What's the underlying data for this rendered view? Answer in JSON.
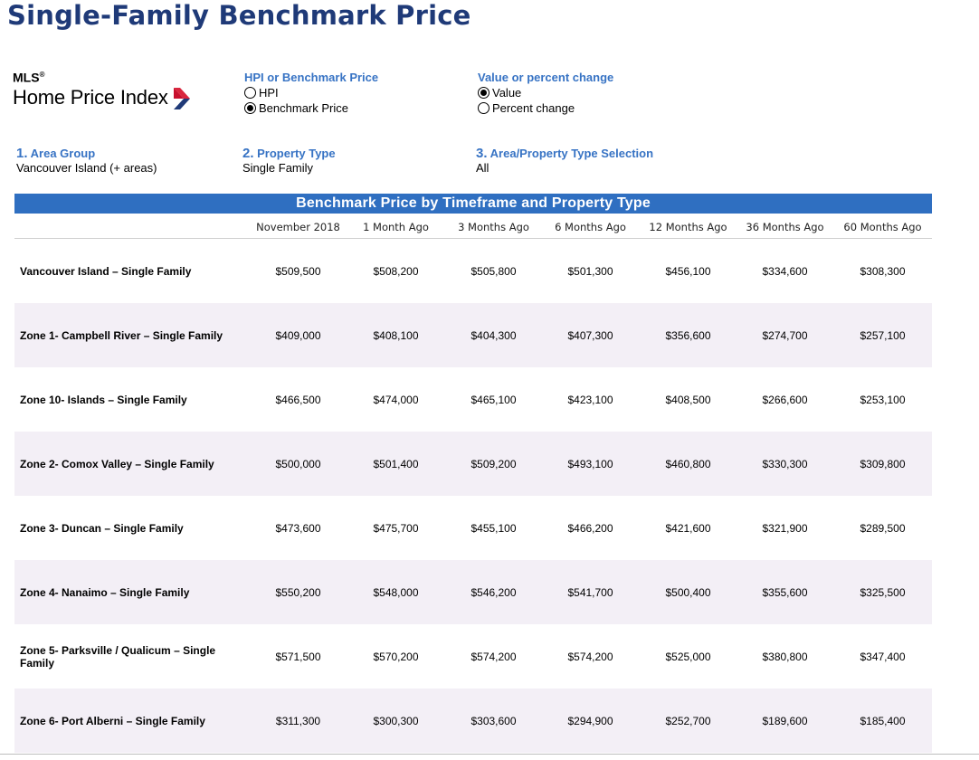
{
  "page": {
    "title": "Single-Family Benchmark Price"
  },
  "logo": {
    "mls": "MLS",
    "reg": "®",
    "name": "Home Price Index"
  },
  "colors": {
    "title": "#1f3a78",
    "accent": "#3773c4",
    "banner": "#2f6fc1",
    "row_alt": "#f3eff6",
    "logo_red": "#c8102e",
    "logo_blue": "#1f3a78"
  },
  "hpi_toggle": {
    "title": "HPI or Benchmark Price",
    "options": [
      {
        "label": "HPI",
        "selected": false
      },
      {
        "label": "Benchmark Price",
        "selected": true
      }
    ]
  },
  "value_toggle": {
    "title": "Value or percent change",
    "options": [
      {
        "label": "Value",
        "selected": true
      },
      {
        "label": "Percent change",
        "selected": false
      }
    ]
  },
  "filters": [
    {
      "num": "1.",
      "title": "Area Group",
      "value": "Vancouver Island (+ areas)"
    },
    {
      "num": "2.",
      "title": "Property Type",
      "value": "Single Family"
    },
    {
      "num": "3.",
      "title": "Area/Property Type Selection",
      "value": "All"
    }
  ],
  "table": {
    "banner": "Benchmark Price by Timeframe and Property Type",
    "columns": [
      "November 2018",
      "1 Month Ago",
      "3 Months Ago",
      "6 Months Ago",
      "12 Months Ago",
      "36 Months Ago",
      "60 Months Ago"
    ],
    "rows": [
      {
        "label": "Vancouver Island – Single Family",
        "values": [
          "$509,500",
          "$508,200",
          "$505,800",
          "$501,300",
          "$456,100",
          "$334,600",
          "$308,300"
        ]
      },
      {
        "label": "Zone 1- Campbell River – Single Family",
        "values": [
          "$409,000",
          "$408,100",
          "$404,300",
          "$407,300",
          "$356,600",
          "$274,700",
          "$257,100"
        ]
      },
      {
        "label": "Zone 10- Islands – Single Family",
        "values": [
          "$466,500",
          "$474,000",
          "$465,100",
          "$423,100",
          "$408,500",
          "$266,600",
          "$253,100"
        ]
      },
      {
        "label": "Zone 2- Comox Valley – Single Family",
        "values": [
          "$500,000",
          "$501,400",
          "$509,200",
          "$493,100",
          "$460,800",
          "$330,300",
          "$309,800"
        ]
      },
      {
        "label": "Zone 3- Duncan – Single Family",
        "values": [
          "$473,600",
          "$475,700",
          "$455,100",
          "$466,200",
          "$421,600",
          "$321,900",
          "$289,500"
        ]
      },
      {
        "label": "Zone 4- Nanaimo – Single Family",
        "values": [
          "$550,200",
          "$548,000",
          "$546,200",
          "$541,700",
          "$500,400",
          "$355,600",
          "$325,500"
        ]
      },
      {
        "label": "Zone 5- Parksville / Qualicum – Single Family",
        "values": [
          "$571,500",
          "$570,200",
          "$574,200",
          "$574,200",
          "$525,000",
          "$380,800",
          "$347,400"
        ]
      },
      {
        "label": "Zone 6- Port Alberni – Single Family",
        "values": [
          "$311,300",
          "$300,300",
          "$303,600",
          "$294,900",
          "$252,700",
          "$189,600",
          "$185,400"
        ]
      }
    ]
  }
}
